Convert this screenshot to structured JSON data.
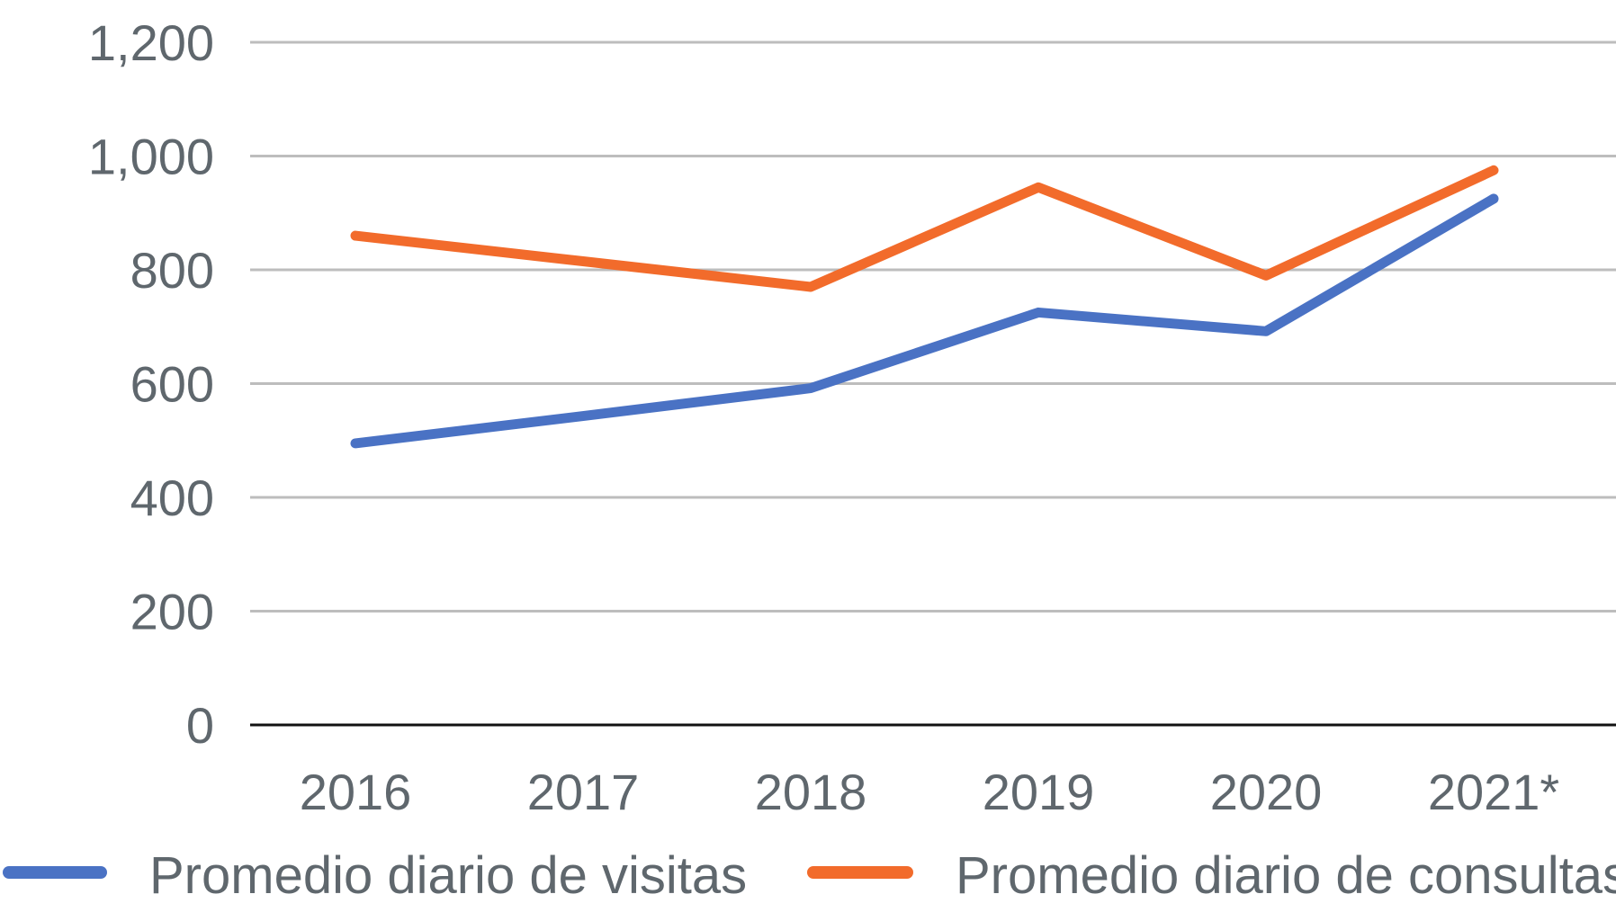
{
  "chart_data": {
    "type": "line",
    "categories": [
      "2016",
      "2017",
      "2018",
      "2019",
      "2020",
      "2021*"
    ],
    "series": [
      {
        "name": "Promedio diario de visitas",
        "values": [
          495,
          543,
          592,
          725,
          692,
          925
        ],
        "color": "#4a72c4"
      },
      {
        "name": "Promedio diario de consultas",
        "values": [
          860,
          815,
          770,
          945,
          790,
          975
        ],
        "color": "#f26b2b"
      }
    ],
    "ylim": [
      0,
      1200
    ],
    "yticks": [
      "0",
      "200",
      "400",
      "600",
      "800",
      "1,000",
      "1,200"
    ],
    "ytick_values": [
      0,
      200,
      400,
      600,
      800,
      1000,
      1200
    ],
    "grid": true,
    "legend_position": "bottom",
    "title": "",
    "xlabel": "",
    "ylabel": ""
  }
}
